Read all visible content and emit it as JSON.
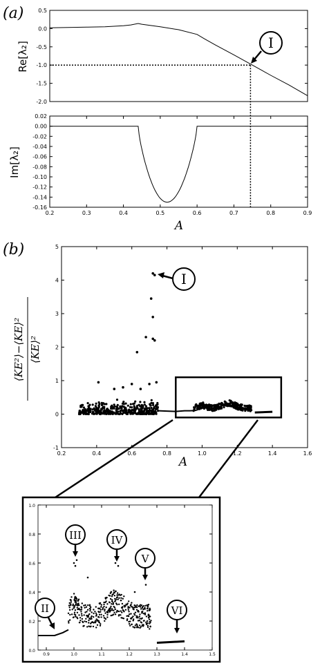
{
  "panels": {
    "a_label": "(a)",
    "b_label": "(b)",
    "a_xlabel": "A",
    "b_xlabel": "A",
    "re_label": "Re[λ₂]",
    "im_label": "Im[λ₂]",
    "b_ylabel_num": "⟨KE²⟩−⟨KE⟩²",
    "b_ylabel_den": "⟨KE⟩²",
    "markers": {
      "I_a": "I",
      "I_b": "I",
      "II": "II",
      "III": "III",
      "IV": "IV",
      "V": "V",
      "VI": "VI"
    }
  },
  "chart_data": [
    {
      "type": "line",
      "ylabel": "Re[λ₂]",
      "xlim": [
        0.2,
        0.9
      ],
      "ylim": [
        -2.0,
        0.5
      ],
      "x_ticks": [
        "0.2",
        "0.3",
        "0.4",
        "0.5",
        "0.6",
        "0.7",
        "0.8",
        "0.9"
      ],
      "y_ticks": [
        "0.5",
        "0.0",
        "-0.5",
        "-1.0",
        "-1.5",
        "-2.0"
      ],
      "x": [
        0.2,
        0.25,
        0.3,
        0.35,
        0.4,
        0.42,
        0.44,
        0.45,
        0.5,
        0.55,
        0.6,
        0.62,
        0.65,
        0.7,
        0.75,
        0.8,
        0.85,
        0.9
      ],
      "y": [
        0.02,
        0.03,
        0.04,
        0.05,
        0.08,
        0.1,
        0.14,
        0.12,
        0.05,
        -0.03,
        -0.16,
        -0.28,
        -0.45,
        -0.72,
        -1.0,
        -1.28,
        -1.55,
        -1.84
      ],
      "annotation": {
        "label": "I",
        "x": 0.745,
        "y": -1.0
      }
    },
    {
      "type": "line",
      "xlabel": "A",
      "ylabel": "Im[λ₂]",
      "xlim": [
        0.2,
        0.9
      ],
      "ylim": [
        -0.16,
        0.02
      ],
      "x_ticks": [
        "0.2",
        "0.3",
        "0.4",
        "0.5",
        "0.6",
        "0.7",
        "0.8",
        "0.9"
      ],
      "y_ticks": [
        "0.02",
        "0.00",
        "-0.02",
        "-0.04",
        "-0.06",
        "-0.08",
        "-0.10",
        "-0.12",
        "-0.14",
        "-0.16"
      ],
      "x": [
        0.2,
        0.44,
        0.445,
        0.45,
        0.46,
        0.48,
        0.5,
        0.52,
        0.54,
        0.56,
        0.58,
        0.595,
        0.6,
        0.9
      ],
      "y": [
        0.0,
        0.0,
        -0.03,
        -0.05,
        -0.075,
        -0.11,
        -0.135,
        -0.148,
        -0.145,
        -0.125,
        -0.085,
        -0.035,
        0.0,
        0.0
      ]
    },
    {
      "type": "scatter",
      "xlabel": "A",
      "ylabel": "⟨KE²⟩−⟨KE⟩² / ⟨KE⟩²",
      "xlim": [
        0.2,
        1.6
      ],
      "ylim": [
        -1,
        5
      ],
      "x_ticks": [
        "0.2",
        "0.4",
        "0.6",
        "0.8",
        "1.0",
        "1.2",
        "1.4",
        "1.6"
      ],
      "y_ticks": [
        "5",
        "4",
        "3",
        "2",
        "1",
        "0",
        "-1"
      ],
      "outliers": [
        [
          0.72,
          4.2
        ],
        [
          0.73,
          4.15
        ],
        [
          0.71,
          3.45
        ],
        [
          0.72,
          2.9
        ],
        [
          0.68,
          2.3
        ],
        [
          0.72,
          2.25
        ],
        [
          0.73,
          2.2
        ],
        [
          0.63,
          1.85
        ],
        [
          0.74,
          0.95
        ],
        [
          0.41,
          0.95
        ],
        [
          0.6,
          0.9
        ],
        [
          0.7,
          0.9
        ],
        [
          0.55,
          0.8
        ],
        [
          0.5,
          0.75
        ],
        [
          0.65,
          0.75
        ]
      ],
      "line_segment": {
        "x": [
          0.75,
          0.8,
          0.85,
          0.9,
          0.93,
          0.96,
          0.98
        ],
        "y": [
          0.1,
          0.09,
          0.08,
          0.1,
          0.1,
          0.11,
          0.14
        ]
      },
      "tail_segment": {
        "x": [
          1.3,
          1.4
        ],
        "y": [
          0.05,
          0.07
        ]
      },
      "annotation": {
        "label": "I",
        "x": 0.73,
        "y": 4.2
      },
      "zoom_box": {
        "x": [
          0.85,
          1.45
        ],
        "y": [
          -0.1,
          1.1
        ]
      }
    },
    {
      "type": "scatter",
      "xlim": [
        0.87,
        1.5
      ],
      "ylim": [
        0.0,
        1.0
      ],
      "x_ticks": [
        "0.9",
        "1.0",
        "1.1",
        "1.2",
        "1.3",
        "1.4",
        "1.5"
      ],
      "y_ticks": [
        "1.0",
        "0.8",
        "0.6",
        "0.4",
        "0.2",
        "0.0"
      ],
      "line_segment": {
        "x": [
          0.87,
          0.9,
          0.93,
          0.96,
          0.98
        ],
        "y": [
          0.1,
          0.1,
          0.1,
          0.12,
          0.14
        ]
      },
      "tail_segment": {
        "x": [
          1.3,
          1.4
        ],
        "y": [
          0.05,
          0.06
        ]
      },
      "annotations": [
        {
          "label": "II",
          "x": 0.93,
          "y": 0.1
        },
        {
          "label": "III",
          "x": 1.0,
          "y": 0.6
        },
        {
          "label": "IV",
          "x": 1.15,
          "y": 0.6
        },
        {
          "label": "V",
          "x": 1.26,
          "y": 0.4
        },
        {
          "label": "VI",
          "x": 1.37,
          "y": 0.07
        }
      ]
    }
  ]
}
